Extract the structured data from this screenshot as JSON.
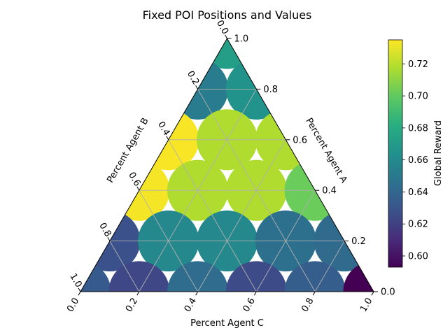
{
  "chart_data": {
    "type": "scatter",
    "projection": "ternary",
    "title": "Fixed POI Positions and Values",
    "axes": {
      "a": {
        "label": "Percent Agent A",
        "ticks": [
          "0.0",
          "0.2",
          "0.4",
          "0.6",
          "0.8",
          "1.0"
        ]
      },
      "b": {
        "label": "Percent Agent B",
        "ticks": [
          "0.0",
          "0.2",
          "0.4",
          "0.6",
          "0.8",
          "1.0"
        ]
      },
      "c": {
        "label": "Percent Agent C",
        "ticks": [
          "0.0",
          "0.2",
          "0.4",
          "0.6",
          "0.8",
          "1.0"
        ]
      }
    },
    "grid": true,
    "colorbar": {
      "label": "Global Reward",
      "min": 0.593,
      "max": 0.735,
      "ticks": [
        "0.60",
        "0.62",
        "0.64",
        "0.66",
        "0.68",
        "0.70",
        "0.72"
      ],
      "colormap": "viridis"
    },
    "points": [
      {
        "a": 1.0,
        "b": 0.0,
        "c": 0.0,
        "value": 0.672
      },
      {
        "a": 0.8,
        "b": 0.2,
        "c": 0.0,
        "value": 0.652
      },
      {
        "a": 0.8,
        "b": 0.0,
        "c": 0.2,
        "value": 0.665
      },
      {
        "a": 0.6,
        "b": 0.4,
        "c": 0.0,
        "value": 0.734
      },
      {
        "a": 0.6,
        "b": 0.2,
        "c": 0.2,
        "value": 0.718
      },
      {
        "a": 0.6,
        "b": 0.0,
        "c": 0.4,
        "value": 0.718
      },
      {
        "a": 0.4,
        "b": 0.6,
        "c": 0.0,
        "value": 0.733
      },
      {
        "a": 0.4,
        "b": 0.4,
        "c": 0.2,
        "value": 0.718
      },
      {
        "a": 0.4,
        "b": 0.2,
        "c": 0.4,
        "value": 0.718
      },
      {
        "a": 0.4,
        "b": 0.0,
        "c": 0.6,
        "value": 0.702
      },
      {
        "a": 0.2,
        "b": 0.8,
        "c": 0.0,
        "value": 0.628
      },
      {
        "a": 0.2,
        "b": 0.6,
        "c": 0.2,
        "value": 0.659
      },
      {
        "a": 0.2,
        "b": 0.4,
        "c": 0.4,
        "value": 0.659
      },
      {
        "a": 0.2,
        "b": 0.2,
        "c": 0.6,
        "value": 0.645
      },
      {
        "a": 0.2,
        "b": 0.0,
        "c": 0.8,
        "value": 0.642
      },
      {
        "a": 0.0,
        "b": 1.0,
        "c": 0.0,
        "value": 0.633
      },
      {
        "a": 0.0,
        "b": 0.8,
        "c": 0.2,
        "value": 0.623
      },
      {
        "a": 0.0,
        "b": 0.6,
        "c": 0.4,
        "value": 0.643
      },
      {
        "a": 0.0,
        "b": 0.4,
        "c": 0.6,
        "value": 0.625
      },
      {
        "a": 0.0,
        "b": 0.2,
        "c": 0.8,
        "value": 0.635
      },
      {
        "a": 0.0,
        "b": 0.0,
        "c": 1.0,
        "value": 0.593
      }
    ]
  }
}
